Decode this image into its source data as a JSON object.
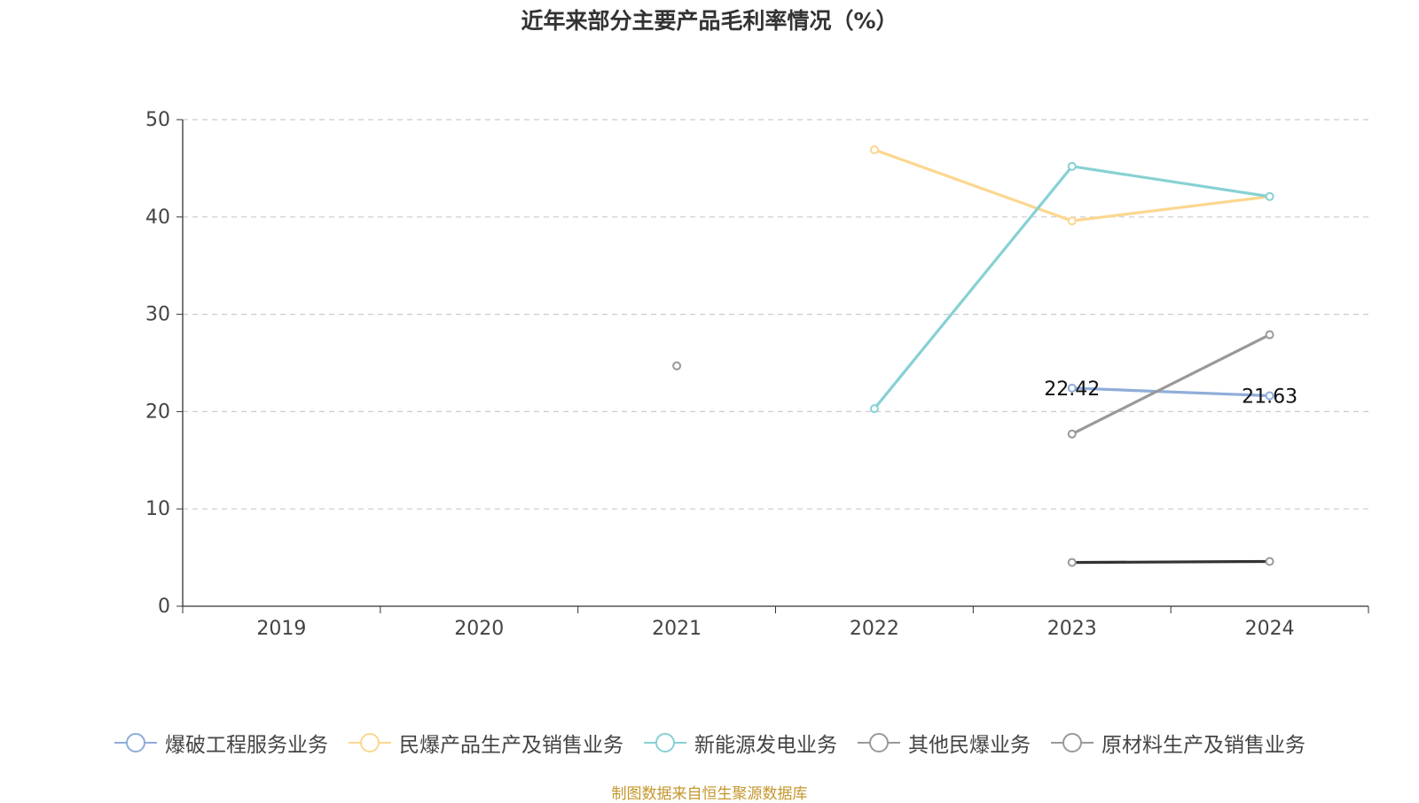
{
  "chart_data": {
    "type": "line",
    "title": "近年来部分主要产品毛利率情况（%）",
    "xlabel": "",
    "ylabel": "",
    "categories": [
      "2019",
      "2020",
      "2021",
      "2022",
      "2023",
      "2024"
    ],
    "ylim": [
      0,
      50
    ],
    "yticks": [
      "0",
      "10",
      "20",
      "30",
      "40",
      "50"
    ],
    "grid": true,
    "legend_position": "bottom",
    "series": [
      {
        "name": "爆破工程服务业务",
        "color": "#8fadd8",
        "values": [
          null,
          null,
          null,
          null,
          22.42,
          21.63
        ],
        "labels": [
          null,
          null,
          null,
          null,
          "22.42",
          "21.63"
        ]
      },
      {
        "name": "民爆产品生产及销售业务",
        "color": "#fbd78f",
        "values": [
          null,
          null,
          null,
          46.9,
          39.6,
          42.1
        ],
        "labels": [
          null,
          null,
          null,
          null,
          null,
          null
        ]
      },
      {
        "name": "新能源发电业务",
        "color": "#86d1d3",
        "values": [
          null,
          null,
          null,
          20.3,
          45.2,
          42.1
        ],
        "labels": [
          null,
          null,
          null,
          null,
          null,
          null
        ]
      },
      {
        "name": "其他民爆业务",
        "color": "#999999",
        "values": [
          null,
          null,
          24.7,
          null,
          17.7,
          27.9
        ],
        "labels": [
          null,
          null,
          null,
          null,
          null,
          null
        ]
      },
      {
        "name": "原材料生产及销售业务",
        "color": "#999999",
        "lineColor": "#333333",
        "values": [
          null,
          null,
          null,
          null,
          4.5,
          4.6
        ],
        "labels": [
          null,
          null,
          null,
          null,
          null,
          null
        ]
      }
    ],
    "source": "制图数据来自恒生聚源数据库"
  }
}
